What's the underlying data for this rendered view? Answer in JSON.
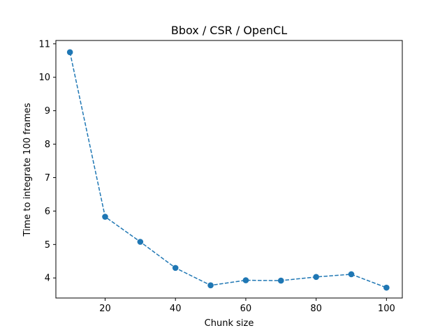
{
  "chart_data": {
    "type": "line",
    "title": "Bbox / CSR / OpenCL",
    "xlabel": "Chunk size",
    "ylabel": "Time to integrate 100 frames",
    "xlim": [
      6,
      104.5
    ],
    "ylim": [
      3.4,
      11.1
    ],
    "xticks": [
      20,
      40,
      60,
      80,
      100
    ],
    "yticks": [
      4,
      5,
      6,
      7,
      8,
      9,
      10,
      11
    ],
    "grid": false,
    "series": [
      {
        "color": "#1f77b4",
        "linestyle": "dashed",
        "marker": "circle",
        "x": [
          10,
          20,
          30,
          40,
          50,
          60,
          70,
          80,
          90,
          100
        ],
        "y": [
          10.75,
          5.83,
          5.08,
          4.3,
          3.78,
          3.93,
          3.92,
          4.03,
          4.11,
          3.71
        ]
      }
    ]
  }
}
